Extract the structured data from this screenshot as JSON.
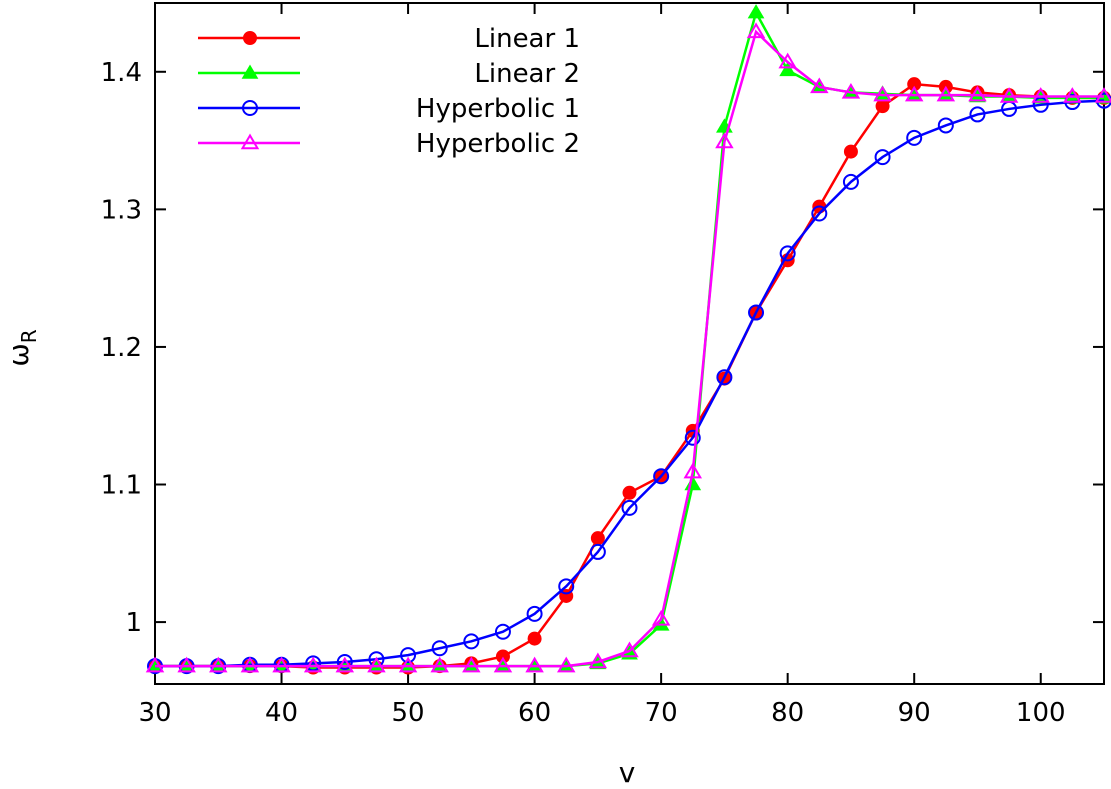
{
  "chart_data": {
    "type": "line",
    "title": "",
    "xlabel": "v",
    "ylabel": "ω",
    "ylabel_subscript": "R",
    "xlim": [
      30,
      105
    ],
    "ylim": [
      0.955,
      1.45
    ],
    "grid": false,
    "legend_position": "top-left",
    "x_ticks": [
      30,
      40,
      50,
      60,
      70,
      80,
      90,
      100
    ],
    "x_tick_labels": [
      "30",
      "40",
      "50",
      "60",
      "70",
      "80",
      "90",
      "100"
    ],
    "y_ticks": [
      1.0,
      1.1,
      1.2,
      1.3,
      1.4
    ],
    "y_tick_labels": [
      "1",
      "1.1",
      "1.2",
      "1.3",
      "1.4"
    ],
    "x": [
      30,
      32.5,
      35,
      37.5,
      40,
      42.5,
      45,
      47.5,
      50,
      52.5,
      55,
      57.5,
      60,
      62.5,
      65,
      67.5,
      70,
      72.5,
      75,
      77.5,
      80,
      82.5,
      85,
      87.5,
      90,
      92.5,
      95,
      97.5,
      100,
      102.5,
      105
    ],
    "series": [
      {
        "name": "Linear 1",
        "color": "#ff0000",
        "marker": "filled-circle",
        "values": [
          0.968,
          0.968,
          0.968,
          0.968,
          0.968,
          0.967,
          0.967,
          0.967,
          0.967,
          0.968,
          0.97,
          0.975,
          0.988,
          1.019,
          1.061,
          1.094,
          1.106,
          1.139,
          1.177,
          1.225,
          1.263,
          1.302,
          1.342,
          1.375,
          1.391,
          1.389,
          1.385,
          1.383,
          1.382,
          1.381,
          1.381
        ]
      },
      {
        "name": "Linear 2",
        "color": "#00ff00",
        "marker": "filled-triangle",
        "values": [
          0.968,
          0.968,
          0.968,
          0.968,
          0.968,
          0.968,
          0.968,
          0.968,
          0.968,
          0.968,
          0.968,
          0.968,
          0.968,
          0.968,
          0.97,
          0.977,
          0.998,
          1.1,
          1.36,
          1.443,
          1.401,
          1.389,
          1.385,
          1.384,
          1.383,
          1.383,
          1.382,
          1.382,
          1.381,
          1.381,
          1.381
        ]
      },
      {
        "name": "Hyperbolic 1",
        "color": "#0000ff",
        "marker": "open-circle",
        "values": [
          0.968,
          0.968,
          0.968,
          0.969,
          0.969,
          0.97,
          0.971,
          0.973,
          0.976,
          0.981,
          0.986,
          0.993,
          1.006,
          1.026,
          1.051,
          1.083,
          1.106,
          1.134,
          1.178,
          1.225,
          1.268,
          1.297,
          1.32,
          1.338,
          1.352,
          1.361,
          1.369,
          1.373,
          1.376,
          1.378,
          1.379
        ]
      },
      {
        "name": "Hyperbolic 2",
        "color": "#ff00ff",
        "marker": "open-triangle",
        "values": [
          0.968,
          0.968,
          0.968,
          0.968,
          0.968,
          0.968,
          0.968,
          0.968,
          0.968,
          0.968,
          0.968,
          0.968,
          0.968,
          0.968,
          0.971,
          0.979,
          1.002,
          1.109,
          1.349,
          1.429,
          1.407,
          1.389,
          1.385,
          1.383,
          1.383,
          1.383,
          1.383,
          1.382,
          1.382,
          1.382,
          1.382
        ]
      }
    ]
  }
}
